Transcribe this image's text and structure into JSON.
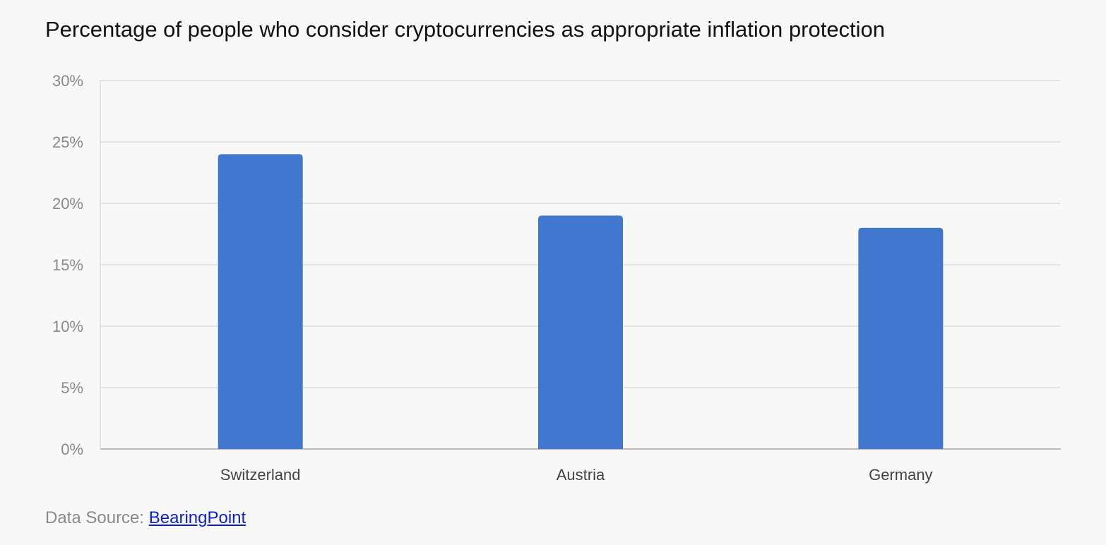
{
  "chart_data": {
    "type": "bar",
    "title": "Percentage of people who consider cryptocurrencies as appropriate inflation protection",
    "categories": [
      "Switzerland",
      "Austria",
      "Germany"
    ],
    "values": [
      24,
      19,
      18
    ],
    "ylim": [
      0,
      30
    ],
    "yticks": [
      0,
      5,
      10,
      15,
      20,
      25,
      30
    ],
    "ytick_labels": [
      "0%",
      "5%",
      "10%",
      "15%",
      "20%",
      "25%",
      "30%"
    ],
    "xlabel": "",
    "ylabel": "",
    "grid": true,
    "legend": "none",
    "bar_color": "#4177cf"
  },
  "source": {
    "prefix": "Data Source: ",
    "link_text": "BearingPoint"
  },
  "colors": {
    "background": "#f8f8f6",
    "grid": "#dddddd",
    "axis": "#bbbbbb"
  }
}
